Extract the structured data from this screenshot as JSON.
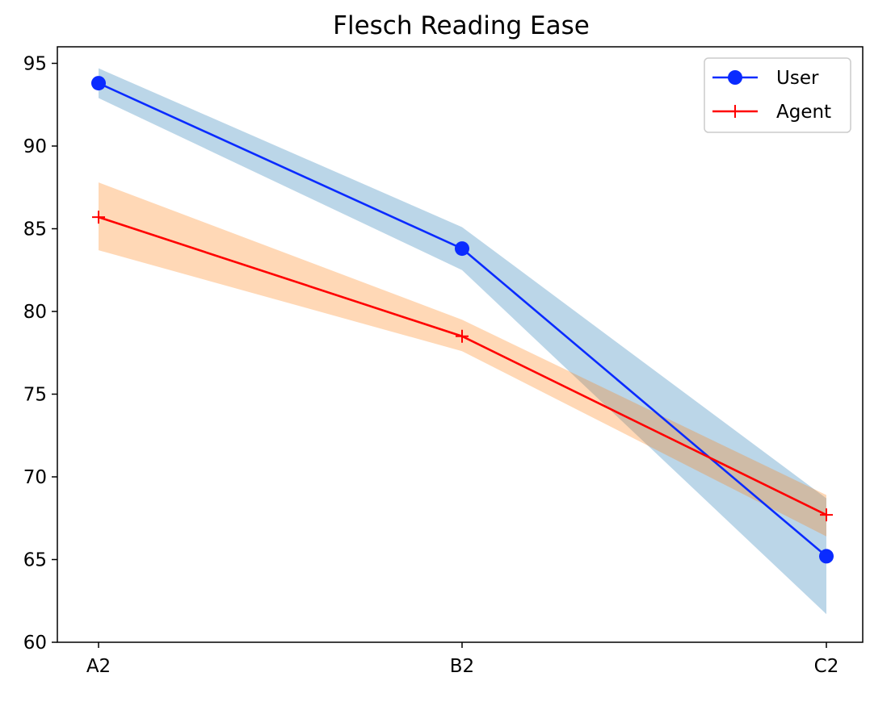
{
  "chart_data": {
    "type": "line",
    "title": "Flesch Reading Ease",
    "xlabel": "",
    "ylabel": "",
    "categories": [
      "A2",
      "B2",
      "C2"
    ],
    "ylim": [
      60,
      96
    ],
    "yticks": [
      60,
      65,
      70,
      75,
      80,
      85,
      90,
      95
    ],
    "grid": false,
    "legend_position": "upper right",
    "series": [
      {
        "name": "User",
        "values": [
          93.8,
          83.8,
          65.2
        ],
        "lower": [
          92.9,
          82.5,
          61.7
        ],
        "upper": [
          94.7,
          85.1,
          68.7
        ],
        "line_color": "#0a2bff",
        "band_color": "#1f77b4",
        "marker": "circle"
      },
      {
        "name": "Agent",
        "values": [
          85.7,
          78.5,
          67.7
        ],
        "lower": [
          83.7,
          77.6,
          66.4
        ],
        "upper": [
          87.8,
          79.5,
          68.9
        ],
        "line_color": "#ff0000",
        "band_color": "#ff7f0e",
        "marker": "plus"
      }
    ]
  }
}
